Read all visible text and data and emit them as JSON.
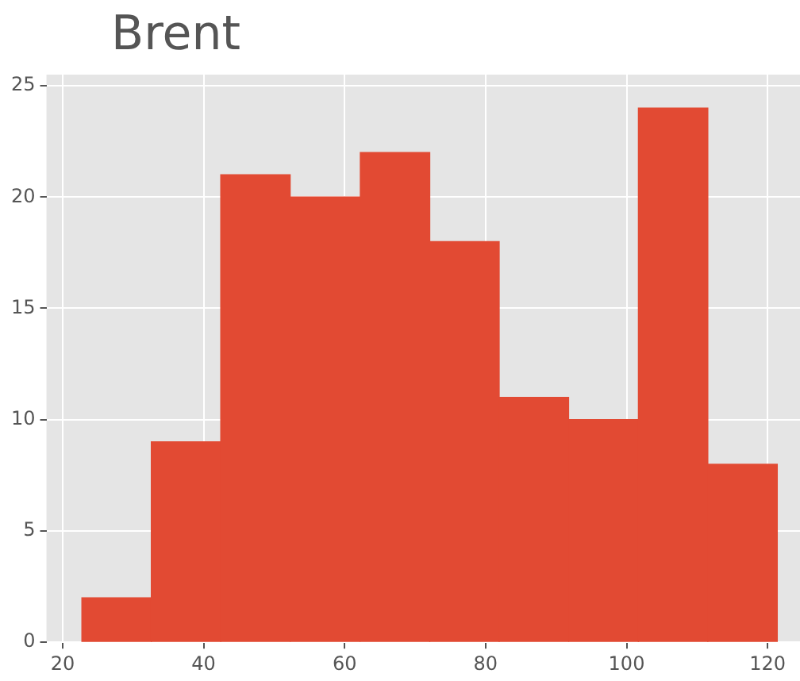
{
  "chart_data": {
    "type": "histogram",
    "title": "Brent",
    "bins": [
      22.7,
      32.6,
      42.4,
      52.3,
      62.2,
      72.1,
      81.9,
      91.8,
      101.7,
      111.5,
      121.4
    ],
    "values": [
      2,
      9,
      21,
      20,
      22,
      18,
      11,
      10,
      24,
      8
    ],
    "color": "#e24a33",
    "xlim": [
      17.7,
      124.6
    ],
    "xticks": [
      20,
      40,
      60,
      80,
      100,
      120
    ],
    "ylim": [
      0,
      25.5
    ],
    "yticks": [
      0,
      5,
      10,
      15,
      20,
      25
    ],
    "grid": true
  }
}
